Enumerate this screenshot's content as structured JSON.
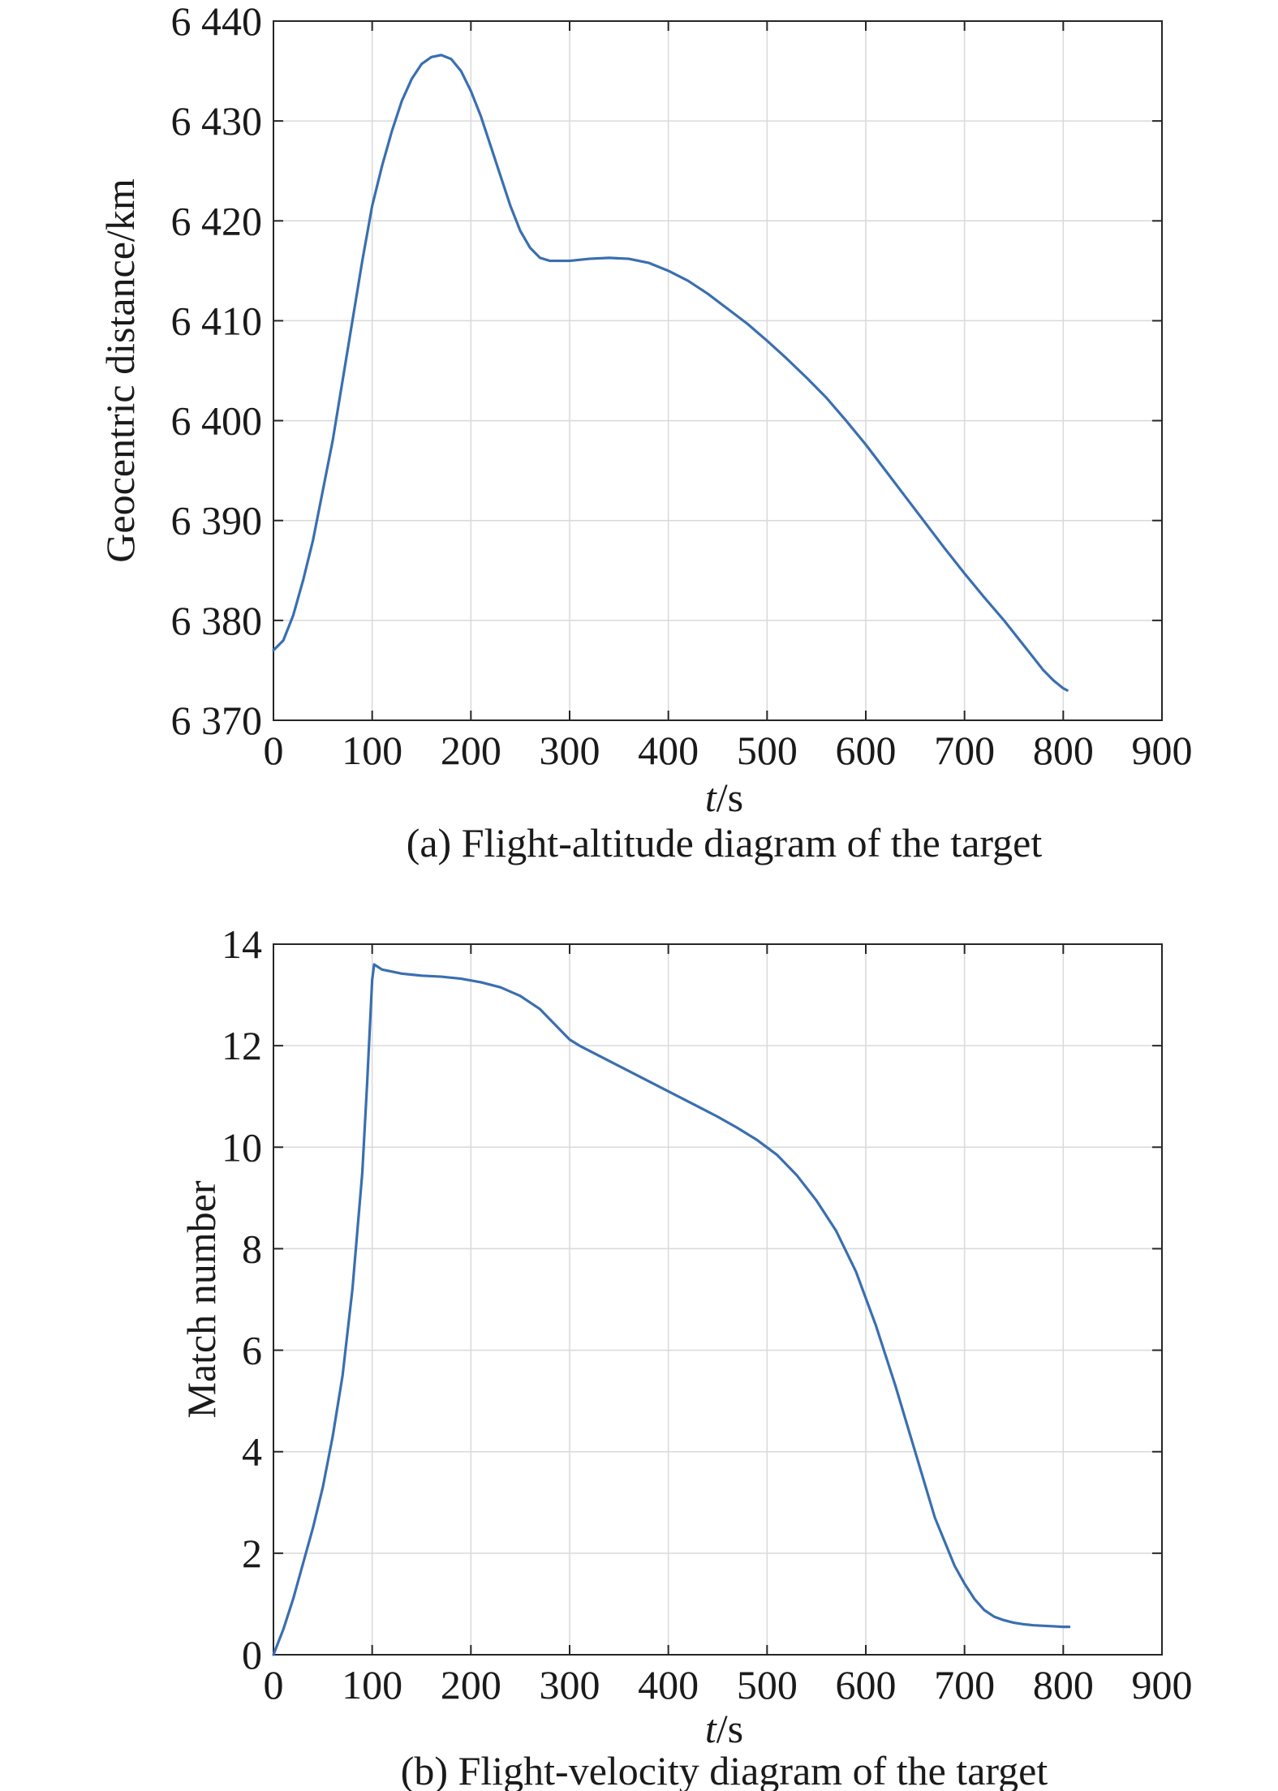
{
  "chart_data": [
    {
      "type": "line",
      "caption": "(a) Flight-altitude diagram of the target",
      "xlabel_italic": "t",
      "xlabel_unit": "/s",
      "ylabel": "Geocentric distance/km",
      "xlim": [
        0,
        900
      ],
      "ylim": [
        6370,
        6440
      ],
      "xticks": [
        0,
        100,
        200,
        300,
        400,
        500,
        600,
        700,
        800,
        900
      ],
      "xtick_labels": [
        "0",
        "100",
        "200",
        "300",
        "400",
        "500",
        "600",
        "700",
        "800",
        "900"
      ],
      "yticks": [
        6370,
        6380,
        6390,
        6400,
        6410,
        6420,
        6430,
        6440
      ],
      "ytick_labels": [
        "6 370",
        "6 380",
        "6 390",
        "6 400",
        "6 410",
        "6 420",
        "6 430",
        "6 440"
      ],
      "grid": true,
      "series": [
        {
          "color": "#3a6fb0",
          "x": [
            0,
            10,
            20,
            30,
            40,
            50,
            60,
            70,
            80,
            90,
            100,
            110,
            120,
            130,
            140,
            150,
            160,
            170,
            180,
            190,
            200,
            210,
            220,
            230,
            240,
            250,
            260,
            270,
            280,
            290,
            300,
            310,
            320,
            340,
            360,
            380,
            400,
            420,
            440,
            460,
            480,
            500,
            520,
            540,
            560,
            580,
            600,
            620,
            640,
            660,
            680,
            700,
            720,
            740,
            760,
            780,
            790,
            800,
            804
          ],
          "y": [
            6377.0,
            6378.0,
            6380.5,
            6384.0,
            6388.0,
            6393.0,
            6398.0,
            6404.0,
            6410.0,
            6416.0,
            6421.5,
            6425.5,
            6429.0,
            6432.0,
            6434.2,
            6435.7,
            6436.4,
            6436.6,
            6436.2,
            6435.0,
            6433.0,
            6430.5,
            6427.5,
            6424.5,
            6421.5,
            6419.0,
            6417.3,
            6416.3,
            6416.0,
            6416.0,
            6416.0,
            6416.1,
            6416.2,
            6416.3,
            6416.2,
            6415.8,
            6415.0,
            6414.0,
            6412.7,
            6411.2,
            6409.7,
            6408.0,
            6406.2,
            6404.3,
            6402.3,
            6400.0,
            6397.6,
            6395.0,
            6392.4,
            6389.8,
            6387.2,
            6384.7,
            6382.3,
            6380.0,
            6377.5,
            6375.0,
            6374.0,
            6373.2,
            6373.0
          ]
        }
      ]
    },
    {
      "type": "line",
      "caption": "(b) Flight-velocity diagram of the target",
      "xlabel_italic": "t",
      "xlabel_unit": "/s",
      "ylabel": "Match number",
      "xlim": [
        0,
        900
      ],
      "ylim": [
        0,
        14
      ],
      "xticks": [
        0,
        100,
        200,
        300,
        400,
        500,
        600,
        700,
        800,
        900
      ],
      "xtick_labels": [
        "0",
        "100",
        "200",
        "300",
        "400",
        "500",
        "600",
        "700",
        "800",
        "900"
      ],
      "yticks": [
        0,
        2,
        4,
        6,
        8,
        10,
        12,
        14
      ],
      "ytick_labels": [
        "0",
        "2",
        "4",
        "6",
        "8",
        "10",
        "12",
        "14"
      ],
      "grid": true,
      "series": [
        {
          "color": "#3a6fb0",
          "x": [
            0,
            10,
            20,
            30,
            40,
            50,
            60,
            70,
            80,
            90,
            95,
            100,
            102,
            110,
            130,
            150,
            170,
            190,
            210,
            230,
            250,
            270,
            290,
            300,
            310,
            330,
            350,
            370,
            390,
            410,
            430,
            450,
            470,
            490,
            510,
            530,
            550,
            570,
            590,
            610,
            630,
            650,
            670,
            690,
            700,
            710,
            720,
            730,
            740,
            750,
            760,
            770,
            780,
            790,
            800,
            806
          ],
          "y": [
            0.0,
            0.5,
            1.1,
            1.8,
            2.5,
            3.3,
            4.3,
            5.5,
            7.2,
            9.5,
            11.3,
            13.3,
            13.6,
            13.5,
            13.42,
            13.38,
            13.36,
            13.32,
            13.25,
            13.15,
            12.98,
            12.72,
            12.32,
            12.12,
            12.0,
            11.8,
            11.6,
            11.4,
            11.2,
            11.0,
            10.8,
            10.6,
            10.38,
            10.14,
            9.85,
            9.45,
            8.95,
            8.35,
            7.55,
            6.5,
            5.3,
            4.0,
            2.7,
            1.75,
            1.4,
            1.1,
            0.88,
            0.75,
            0.68,
            0.63,
            0.6,
            0.58,
            0.57,
            0.56,
            0.55,
            0.55
          ]
        }
      ]
    }
  ]
}
